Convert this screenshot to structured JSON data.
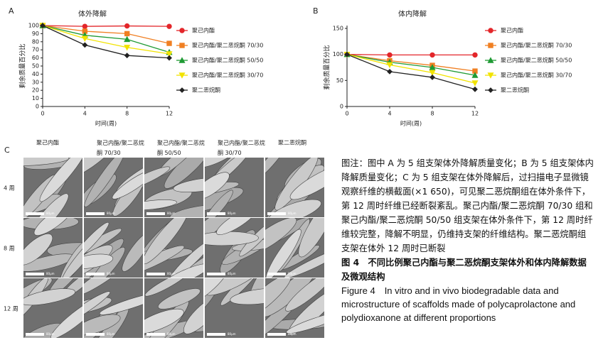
{
  "chart_data": [
    {
      "type": "line",
      "panel": "A",
      "title": "体外降解",
      "x_label": "时间(周)",
      "y_label": "剩余质量百分比",
      "x": [
        0,
        4,
        8,
        12
      ],
      "xlim": [
        0,
        12
      ],
      "xticks": [
        0,
        4,
        8,
        12
      ],
      "ylim": [
        0,
        100
      ],
      "yticks": [
        0,
        10,
        20,
        30,
        40,
        50,
        60,
        70,
        80,
        90,
        100
      ],
      "series": [
        {
          "name": "聚己内酯",
          "color": "#e3262a",
          "marker": "circle",
          "values": [
            100,
            99,
            99.5,
            99
          ]
        },
        {
          "name": "聚己内酯/聚二恶烷酮 70/30",
          "color": "#f07f22",
          "marker": "square",
          "values": [
            100,
            93,
            90,
            78
          ]
        },
        {
          "name": "聚己内酯/聚二恶烷酮 50/50",
          "color": "#1f9a34",
          "marker": "triangle",
          "values": [
            100,
            88,
            83,
            67
          ]
        },
        {
          "name": "聚己内酯/聚二恶烷酮 30/70",
          "color": "#f2e300",
          "marker": "triangle-down",
          "values": [
            100,
            84,
            73,
            65
          ]
        },
        {
          "name": "聚二恶烷酮",
          "color": "#222222",
          "marker": "diamond",
          "values": [
            100,
            76,
            63,
            60
          ]
        }
      ]
    },
    {
      "type": "line",
      "panel": "B",
      "title": "体内降解",
      "x_label": "时间(周)",
      "y_label": "剩余质量百分比",
      "x": [
        0,
        4,
        8,
        12
      ],
      "xlim": [
        0,
        12
      ],
      "xticks": [
        0,
        4,
        8,
        12
      ],
      "ylim": [
        0,
        150
      ],
      "yticks": [
        0,
        50,
        100,
        150
      ],
      "series": [
        {
          "name": "聚己内酯",
          "color": "#e3262a",
          "marker": "circle",
          "values": [
            100,
            99,
            99,
            99
          ]
        },
        {
          "name": "聚己内酯/聚二恶烷酮 70/30",
          "color": "#f07f22",
          "marker": "square",
          "values": [
            100,
            88,
            79,
            68
          ]
        },
        {
          "name": "聚己内酯/聚二恶烷酮 50/50",
          "color": "#1f9a34",
          "marker": "triangle",
          "values": [
            100,
            85,
            75,
            60
          ]
        },
        {
          "name": "聚己内酯/聚二恶烷酮 30/70",
          "color": "#f2e300",
          "marker": "triangle-down",
          "values": [
            100,
            80,
            65,
            45
          ]
        },
        {
          "name": "聚二恶烷酮",
          "color": "#222222",
          "marker": "diamond",
          "values": [
            100,
            67,
            56,
            33
          ]
        }
      ]
    }
  ],
  "panel_c": {
    "label": "C",
    "columns": [
      "聚己内酯",
      "聚己内酯/聚二恶烷酮 70/30",
      "聚己内酯/聚二恶烷酮 50/50",
      "聚己内酯/聚二恶烷酮 30/70",
      "聚二恶烷酮"
    ],
    "rows": [
      "4 周",
      "8 周",
      "12 周"
    ],
    "scale_bar": "80μm"
  },
  "caption": {
    "note": "图注：图中 A 为 5 组支架体外降解质量变化；B 为 5 组支架体内降解质量变化；C 为 5 组支架在体外降解后，过扫描电子显微镜观察纤维的横截面(×1 650)，可见聚二恶烷酮组在体外条件下，第 12 周时纤维已经断裂紊乱。聚己内酯/聚二恶烷酮 70/30 组和聚己内酯/聚二恶烷酮 50/50 组支架在体外条件下，第 12 周时纤维较完整，降解不明显，仍维持支架的纤维结构。聚二恶烷酮组支架在体外 12 周时已断裂",
    "title_cn": "图 4　不同比例聚己内酯与聚二恶烷酮支架体外和体内降解数据及微观结构",
    "title_en": "Figure 4　In vitro and in vivo biodegradable data and microstructure of scaffolds made of polycaprolactone and polydioxanone at different proportions"
  }
}
